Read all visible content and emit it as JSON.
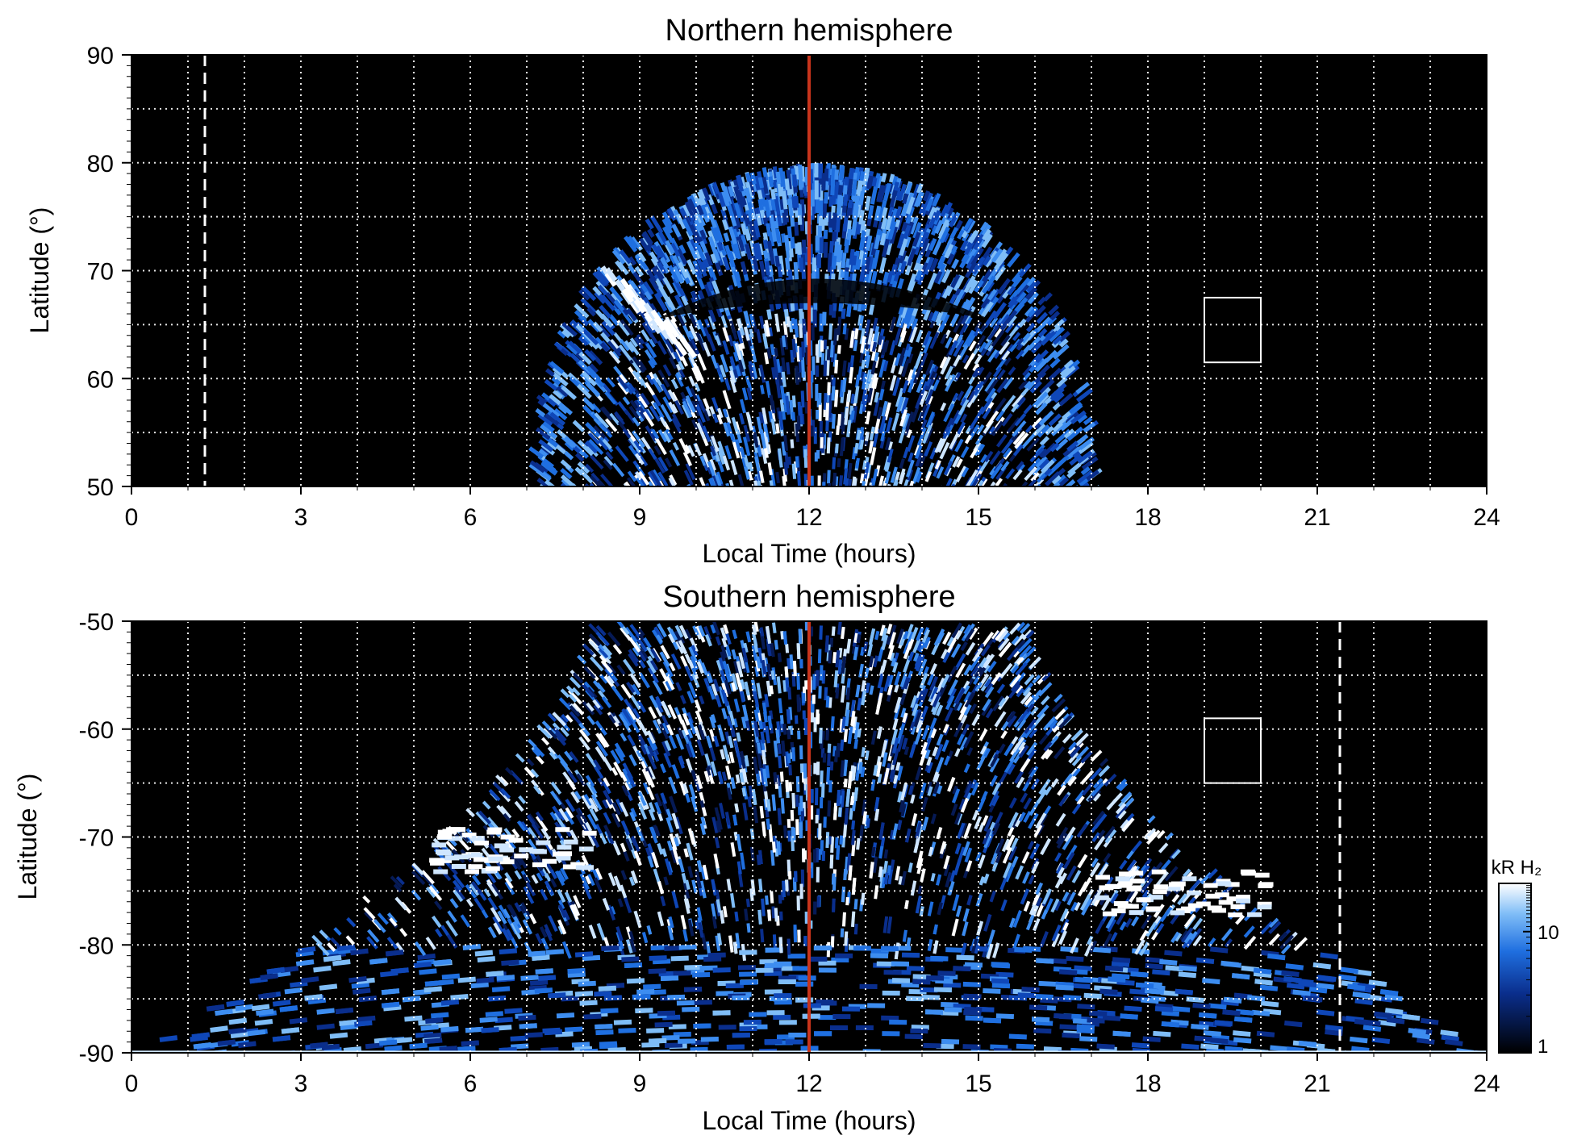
{
  "chart_data": [
    {
      "type": "heatmap",
      "title": "Northern hemisphere",
      "xlabel": "Local Time (hours)",
      "ylabel": "Latitude (°)",
      "xlim": [
        0,
        24
      ],
      "ylim": [
        50,
        90
      ],
      "x_ticks": [
        "0",
        "3",
        "6",
        "9",
        "12",
        "15",
        "18",
        "21",
        "24"
      ],
      "y_ticks": [
        "50",
        "60",
        "70",
        "80",
        "90"
      ],
      "grid": true,
      "noon_line_lt": 12,
      "noon_line_color": "#c8341c",
      "dashed_line_lt": 1.3,
      "box": {
        "lt": [
          19,
          20
        ],
        "lat": [
          61.5,
          67.5
        ]
      },
      "emission_region": {
        "lt": [
          7,
          17.2
        ],
        "lat_top": 80,
        "lat_bottom": 50
      },
      "bright_arc": {
        "lt": [
          8.3,
          9.8
        ],
        "lat": [
          63,
          70
        ]
      }
    },
    {
      "type": "heatmap",
      "title": "Southern hemisphere",
      "xlabel": "Local Time (hours)",
      "ylabel": "Latitude (°)",
      "xlim": [
        0,
        24
      ],
      "ylim": [
        -90,
        -50
      ],
      "x_ticks": [
        "0",
        "3",
        "6",
        "9",
        "12",
        "15",
        "18",
        "21",
        "24"
      ],
      "y_ticks": [
        "-50",
        "-60",
        "-70",
        "-80",
        "-90"
      ],
      "grid": true,
      "noon_line_lt": 12,
      "noon_line_color": "#c8341c",
      "dashed_line_lt": 21.4,
      "box": {
        "lt": [
          19,
          20
        ],
        "lat": [
          -65,
          -59
        ]
      },
      "emission_region": {
        "lt": [
          0,
          24
        ],
        "lat_top": -50,
        "lat_bottom": -90
      },
      "bright_bands": [
        {
          "lt": [
            5.2,
            8
          ],
          "lat": [
            -69,
            -73
          ]
        },
        {
          "lt": [
            17,
            20
          ],
          "lat": [
            -73,
            -77
          ]
        }
      ]
    }
  ],
  "colorbar": {
    "label": "kR H₂",
    "ticks": [
      "1",
      "10"
    ],
    "scale": "log",
    "range": [
      1,
      25
    ],
    "colors": [
      "#000000",
      "#0a2e8c",
      "#1f6fe0",
      "#7fbdf7",
      "#ffffff"
    ]
  }
}
